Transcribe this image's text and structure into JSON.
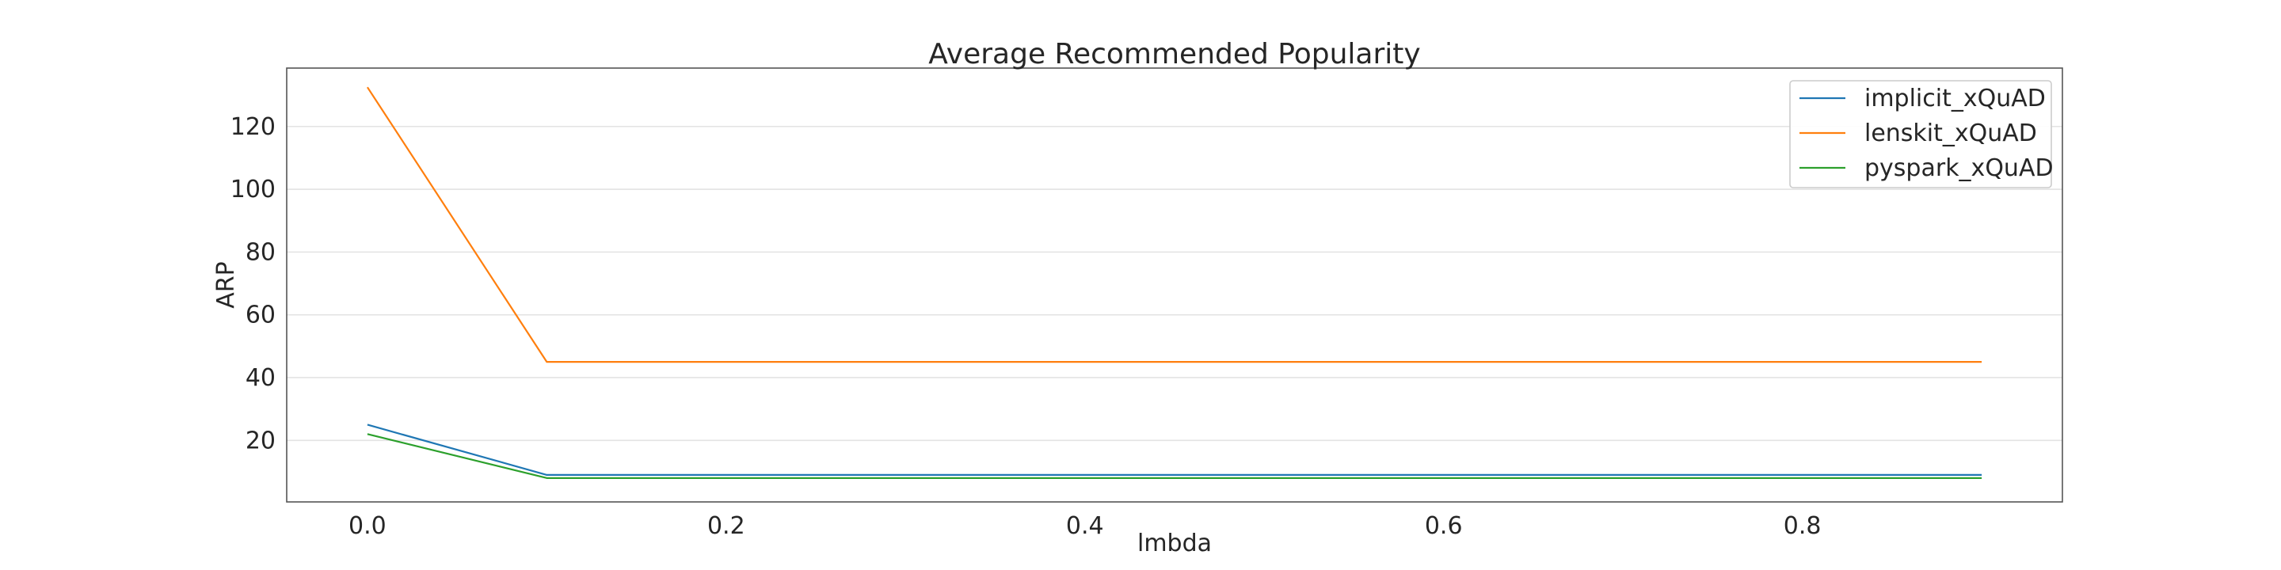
{
  "chart_data": {
    "type": "line",
    "title": "Average Recommended Popularity",
    "xlabel": "lmbda",
    "ylabel": "ARP",
    "x": [
      0.0,
      0.1,
      0.2,
      0.3,
      0.4,
      0.5,
      0.6,
      0.7,
      0.8,
      0.9
    ],
    "xlim": [
      -0.045,
      0.945
    ],
    "ylim": [
      0.4,
      138.6
    ],
    "x_ticks": [
      0.0,
      0.2,
      0.4,
      0.6,
      0.8
    ],
    "x_tick_labels": [
      "0.0",
      "0.2",
      "0.4",
      "0.6",
      "0.8"
    ],
    "y_ticks": [
      20,
      40,
      60,
      80,
      100,
      120
    ],
    "y_tick_labels": [
      "20",
      "40",
      "60",
      "80",
      "100",
      "120"
    ],
    "grid": "horizontal",
    "legend_position": "top-right",
    "series": [
      {
        "name": "implicit_xQuAD",
        "color": "#1f77b4",
        "values": [
          25.0,
          9.0,
          9.0,
          9.0,
          9.0,
          9.0,
          9.0,
          9.0,
          9.0,
          9.0
        ]
      },
      {
        "name": "lenskit_xQuAD",
        "color": "#ff7f0e",
        "values": [
          132.5,
          45.0,
          45.0,
          45.0,
          45.0,
          45.0,
          45.0,
          45.0,
          45.0,
          45.0
        ]
      },
      {
        "name": "pyspark_xQuAD",
        "color": "#2ca02c",
        "values": [
          22.0,
          8.0,
          8.0,
          8.0,
          8.0,
          8.0,
          8.0,
          8.0,
          8.0,
          8.0
        ]
      }
    ]
  }
}
